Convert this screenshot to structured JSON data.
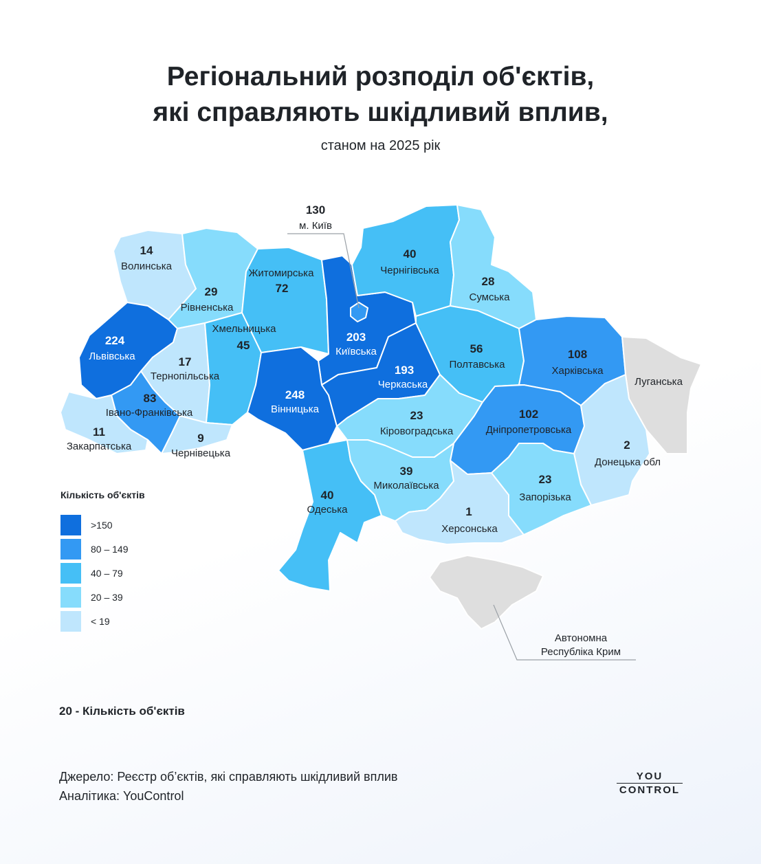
{
  "title_line1": "Регіональний розподіл об'єктів,",
  "title_line2": "які справляють шкідливий вплив,",
  "subtitle": "станом на 2025 рік",
  "colors": {
    "gt150": "#0f6fde",
    "r80_149": "#3399f3",
    "r40_79": "#45bff6",
    "r20_39": "#86dcfc",
    "lt19": "#bfe6fd",
    "nodata": "#dedede",
    "border": "#ffffff"
  },
  "regions": {
    "volynska": {
      "name": "Волинська",
      "value": "14"
    },
    "rivnenska": {
      "name": "Рівненська",
      "value": "29"
    },
    "zhytomyrska": {
      "name": "Житомирська",
      "value": "72"
    },
    "kyivska": {
      "name": "Київська",
      "value": "203"
    },
    "kyiv_city": {
      "name": "м. Київ",
      "value": "130"
    },
    "chernihivska": {
      "name": "Чернігівська",
      "value": "40"
    },
    "sumska": {
      "name": "Сумська",
      "value": "28"
    },
    "lvivska": {
      "name": "Львівська",
      "value": "224"
    },
    "ternopilska": {
      "name": "Тернопільська",
      "value": "17"
    },
    "khmelnytska": {
      "name": "Хмельницька",
      "value": "45"
    },
    "vinnytska": {
      "name": "Вінницька",
      "value": "248"
    },
    "cherkaska": {
      "name": "Черкаська",
      "value": "193"
    },
    "poltavska": {
      "name": "Полтавська",
      "value": "56"
    },
    "kharkivska": {
      "name": "Харківська",
      "value": "108"
    },
    "luhanska": {
      "name": "Луганська"
    },
    "ivano": {
      "name": "Івано-Франківська",
      "value": "83"
    },
    "zakarpatska": {
      "name": "Закарпатська",
      "value": "11"
    },
    "chernivetska": {
      "name": "Чернівецька",
      "value": "9"
    },
    "kirovohradska": {
      "name": "Кіровоградська",
      "value": "23"
    },
    "dnipro": {
      "name": "Дніпропетровська",
      "value": "102"
    },
    "donetska": {
      "name": "Донецька обл",
      "value": "2"
    },
    "odeska": {
      "name": "Одеська",
      "value": "40"
    },
    "mykolaivska": {
      "name": "Миколаївська",
      "value": "39"
    },
    "khersonska": {
      "name": "Херсонська",
      "value": "1"
    },
    "zaporizka": {
      "name": "Запорізька",
      "value": "23"
    },
    "crimea_line1": "Автономна",
    "crimea_line2": "Республіка Крим"
  },
  "legend": {
    "title": "Кількість об'єктів",
    "items": [
      {
        "label": ">150",
        "color": "#0f6fde"
      },
      {
        "label": "80 – 149",
        "color": "#3399f3"
      },
      {
        "label": "40 – 79",
        "color": "#45bff6"
      },
      {
        "label": "20 – 39",
        "color": "#86dcfc"
      },
      {
        "label": "< 19",
        "color": "#bfe6fd"
      }
    ]
  },
  "note": "20 - Кількість об'єктів",
  "source_line1": "Джерело: Реєстр об’єктів, які справляють шкідливий вплив",
  "source_line2": "Аналітика: YouControl",
  "logo_top": "YOU",
  "logo_bottom": "CONTROL"
}
